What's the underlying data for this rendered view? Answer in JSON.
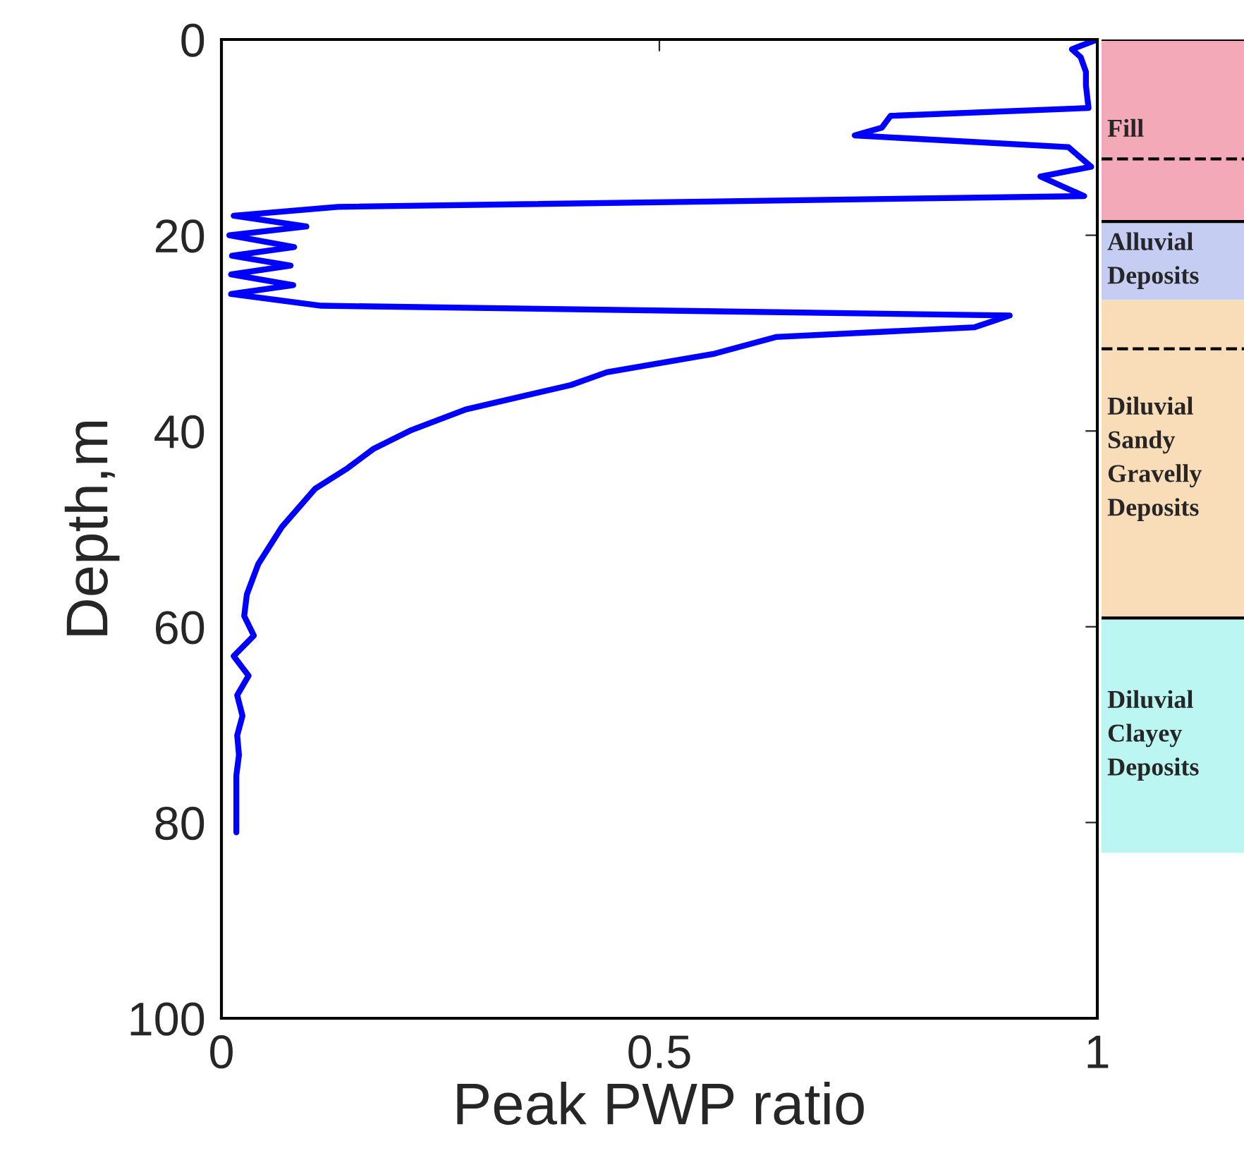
{
  "chart_data": [
    {
      "type": "line",
      "xlabel": "Peak PWP ratio",
      "ylabel": "Depth,m",
      "xlim": [
        0,
        1
      ],
      "xticks": [
        0,
        0.5,
        1
      ],
      "ylim": [
        100,
        0
      ],
      "yticks": [
        0,
        20,
        40,
        60,
        80,
        100
      ],
      "series": [
        {
          "color": "#0000ff",
          "x": [
            1.0,
            0.971,
            0.981,
            0.987,
            0.987,
            0.99,
            0.764,
            0.754,
            0.723,
            0.967,
            0.993,
            0.935,
            0.985,
            0.133,
            0.014,
            0.097,
            0.009,
            0.083,
            0.012,
            0.079,
            0.011,
            0.082,
            0.011,
            0.114,
            0.9,
            0.86,
            0.633,
            0.563,
            0.44,
            0.399,
            0.279,
            0.217,
            0.174,
            0.144,
            0.107,
            0.069,
            0.042,
            0.029,
            0.026,
            0.037,
            0.014,
            0.031,
            0.018,
            0.024,
            0.018,
            0.02,
            0.017,
            0.017
          ],
          "values": [
            0,
            1.0,
            1.8,
            3.3,
            4.7,
            7.0,
            7.8,
            9.0,
            9.8,
            11.0,
            13.0,
            14.0,
            16.0,
            17.1,
            18.0,
            19.1,
            20.0,
            21.2,
            22.1,
            23.1,
            24.0,
            25.1,
            26.0,
            27.2,
            28.2,
            29.4,
            30.4,
            32.1,
            34.0,
            35.3,
            37.8,
            39.9,
            41.8,
            43.8,
            45.9,
            49.8,
            53.6,
            56.7,
            58.9,
            60.9,
            63.0,
            65.0,
            67.0,
            69.1,
            71.1,
            73.1,
            75.2,
            81.0
          ]
        }
      ]
    },
    {
      "type": "bar",
      "stacked": true,
      "categories": [
        null
      ],
      "ylim": [
        100,
        0
      ],
      "tick_labels": false,
      "series": [
        {
          "name": "Fill",
          "color": "#f4a9b8",
          "values": [
            18.6
          ]
        },
        {
          "name": "Alluvial\nDeposits",
          "color": "#c6cdf2",
          "values": [
            8.0
          ]
        },
        {
          "name": "Diluvial\nSandy\nGravelly\nDeposits",
          "color": "#f9dcb8",
          "values": [
            32.5
          ]
        },
        {
          "name": "Diluvial\nClayey\nDeposits",
          "color": "#bcf6f2",
          "values": [
            24.0
          ]
        }
      ],
      "ref_lines": [
        {
          "axis": "y",
          "value": 0,
          "line_style": "solid"
        },
        {
          "axis": "y",
          "value": 12.2,
          "line_style": "dashed"
        },
        {
          "axis": "y",
          "value": 18.6,
          "line_style": "solid"
        },
        {
          "axis": "y",
          "value": 31.6,
          "line_style": "dashed"
        },
        {
          "axis": "y",
          "value": 59.1,
          "line_style": "solid"
        }
      ]
    }
  ]
}
